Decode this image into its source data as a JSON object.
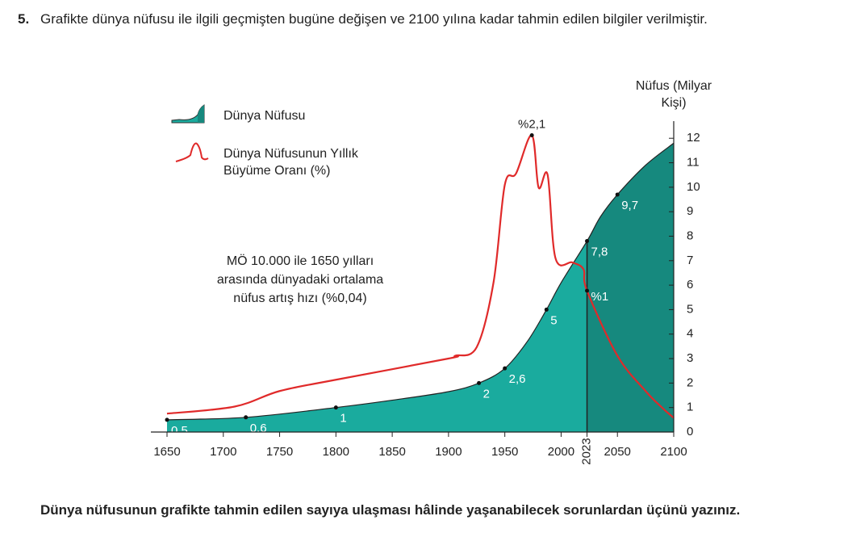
{
  "question": {
    "number": "5.",
    "text": "Grafikte dünya nüfusu ile ilgili geçmişten bugüne değişen ve 2100 yılına kadar tahmin edilen bilgiler verilmiştir.",
    "prompt": "Dünya nüfusunun grafikte tahmin edilen sayıya ulaşması hâlinde yaşanabilecek sorunlardan üçünü yazınız."
  },
  "chart_data": {
    "type": "area-line",
    "y_axis_label": "Nüfus (Milyar Kişi)",
    "annotation": [
      "MÖ 10.000 ile 1650 yılları",
      "arasında dünyadaki ortalama",
      "nüfus artış hızı (%0,04)"
    ],
    "xlim": [
      1650,
      2100
    ],
    "xticks": [
      1650,
      1700,
      1750,
      1800,
      1850,
      1900,
      1950,
      2000,
      2023,
      2050,
      2100
    ],
    "ylim": [
      0,
      12.7
    ],
    "yticks": [
      0,
      1,
      2,
      3,
      4,
      5,
      6,
      7,
      8,
      9,
      10,
      11,
      12
    ],
    "y2lim": [
      0,
      2.2
    ],
    "forecast_from": 2023,
    "series": [
      {
        "name": "Dünya Nüfusu",
        "color": "#1aab9e",
        "forecast_color": "#16897e",
        "x": [
          1650,
          1720,
          1800,
          1850,
          1900,
          1927,
          1950,
          1970,
          1987,
          2000,
          2023,
          2035,
          2050,
          2075,
          2100
        ],
        "values": [
          0.5,
          0.6,
          1,
          1.3,
          1.65,
          2,
          2.6,
          3.7,
          5,
          6.1,
          7.8,
          8.8,
          9.7,
          10.9,
          11.8
        ],
        "value_labels": [
          "0,5",
          "0,6",
          "1",
          null,
          null,
          "2",
          "2,6",
          null,
          "5",
          null,
          "7,8",
          null,
          "9,7",
          null,
          null
        ]
      },
      {
        "name": "Dünya Nüfusunun Yıllık Büyüme Oranı (%)",
        "color": "#e02a2a",
        "axis": "y2",
        "x": [
          1650,
          1710,
          1750,
          1800,
          1900,
          1906,
          1925,
          1940,
          1950,
          1960,
          1974,
          1980,
          1988,
          1995,
          2010,
          2020,
          2023,
          2050,
          2075,
          2090,
          2100
        ],
        "values": [
          0.13,
          0.18,
          0.29,
          0.37,
          0.52,
          0.54,
          0.6,
          1.06,
          1.75,
          1.83,
          2.1,
          1.73,
          1.82,
          1.23,
          1.2,
          1.15,
          1,
          0.54,
          0.29,
          0.17,
          0.1
        ],
        "value_labels": [
          null,
          null,
          null,
          null,
          null,
          null,
          null,
          null,
          null,
          null,
          "%2,1",
          null,
          null,
          null,
          null,
          null,
          "%1",
          null,
          null,
          null,
          null
        ]
      }
    ]
  }
}
